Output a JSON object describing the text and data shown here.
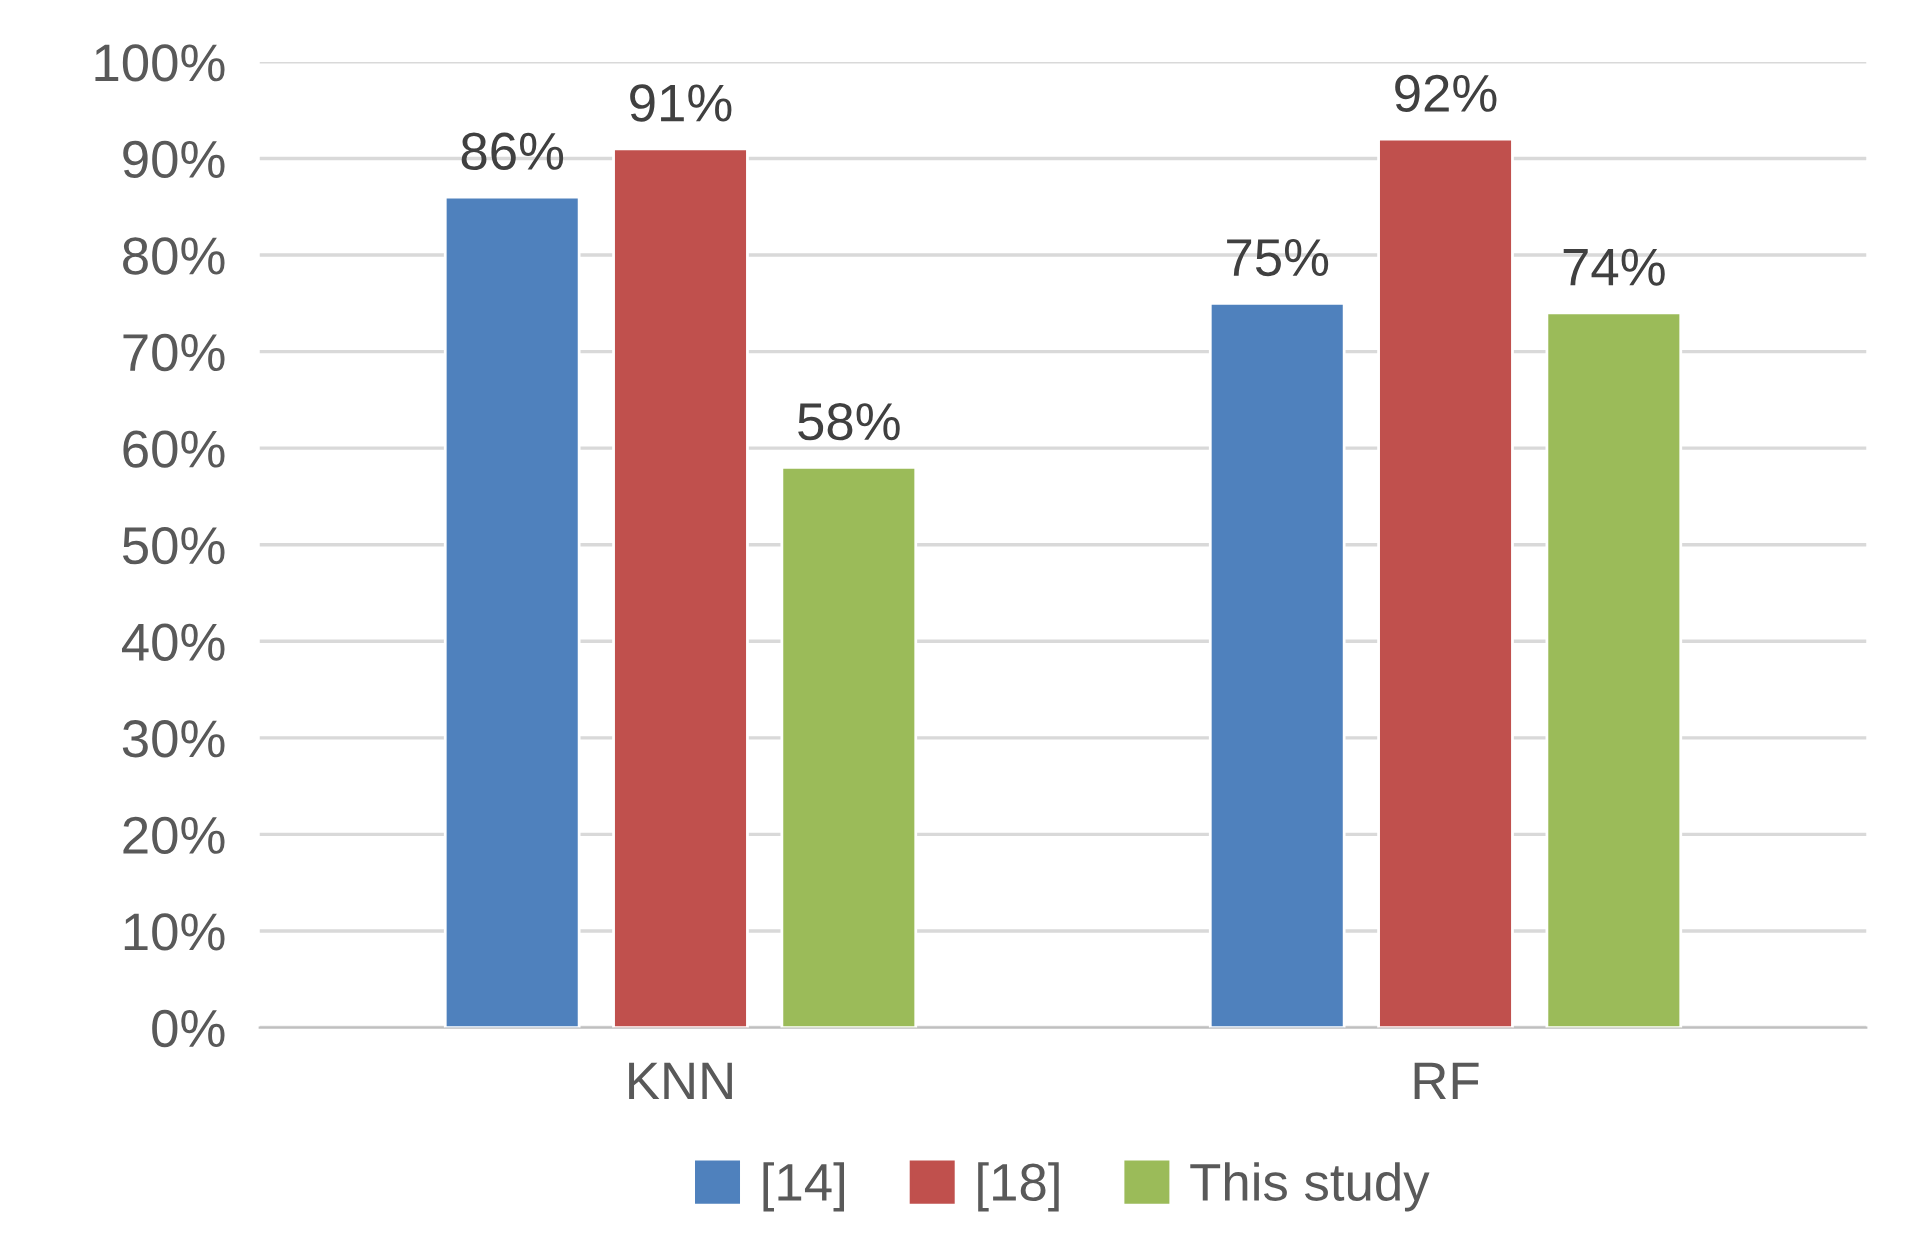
{
  "chart_data": {
    "type": "bar",
    "categories": [
      "KNN",
      "RF"
    ],
    "series": [
      {
        "name": "[14]",
        "color": "#4f81bd",
        "values": [
          86,
          75
        ],
        "value_labels": [
          "86%",
          "75%"
        ]
      },
      {
        "name": "[18]",
        "color": "#c0504d",
        "values": [
          91,
          92
        ],
        "value_labels": [
          "91%",
          "92%"
        ]
      },
      {
        "name": "This study",
        "color": "#9bbb59",
        "values": [
          58,
          74
        ],
        "value_labels": [
          "58%",
          "74%"
        ]
      }
    ],
    "ylim": [
      0,
      100
    ],
    "yticks": [
      {
        "value": 0,
        "label": "0%"
      },
      {
        "value": 10,
        "label": "10%"
      },
      {
        "value": 20,
        "label": "20%"
      },
      {
        "value": 30,
        "label": "30%"
      },
      {
        "value": 40,
        "label": "40%"
      },
      {
        "value": 50,
        "label": "50%"
      },
      {
        "value": 60,
        "label": "60%"
      },
      {
        "value": 70,
        "label": "70%"
      },
      {
        "value": 80,
        "label": "80%"
      },
      {
        "value": 90,
        "label": "90%"
      },
      {
        "value": 100,
        "label": "100%"
      }
    ],
    "grid": "y",
    "legend": "bottom"
  }
}
